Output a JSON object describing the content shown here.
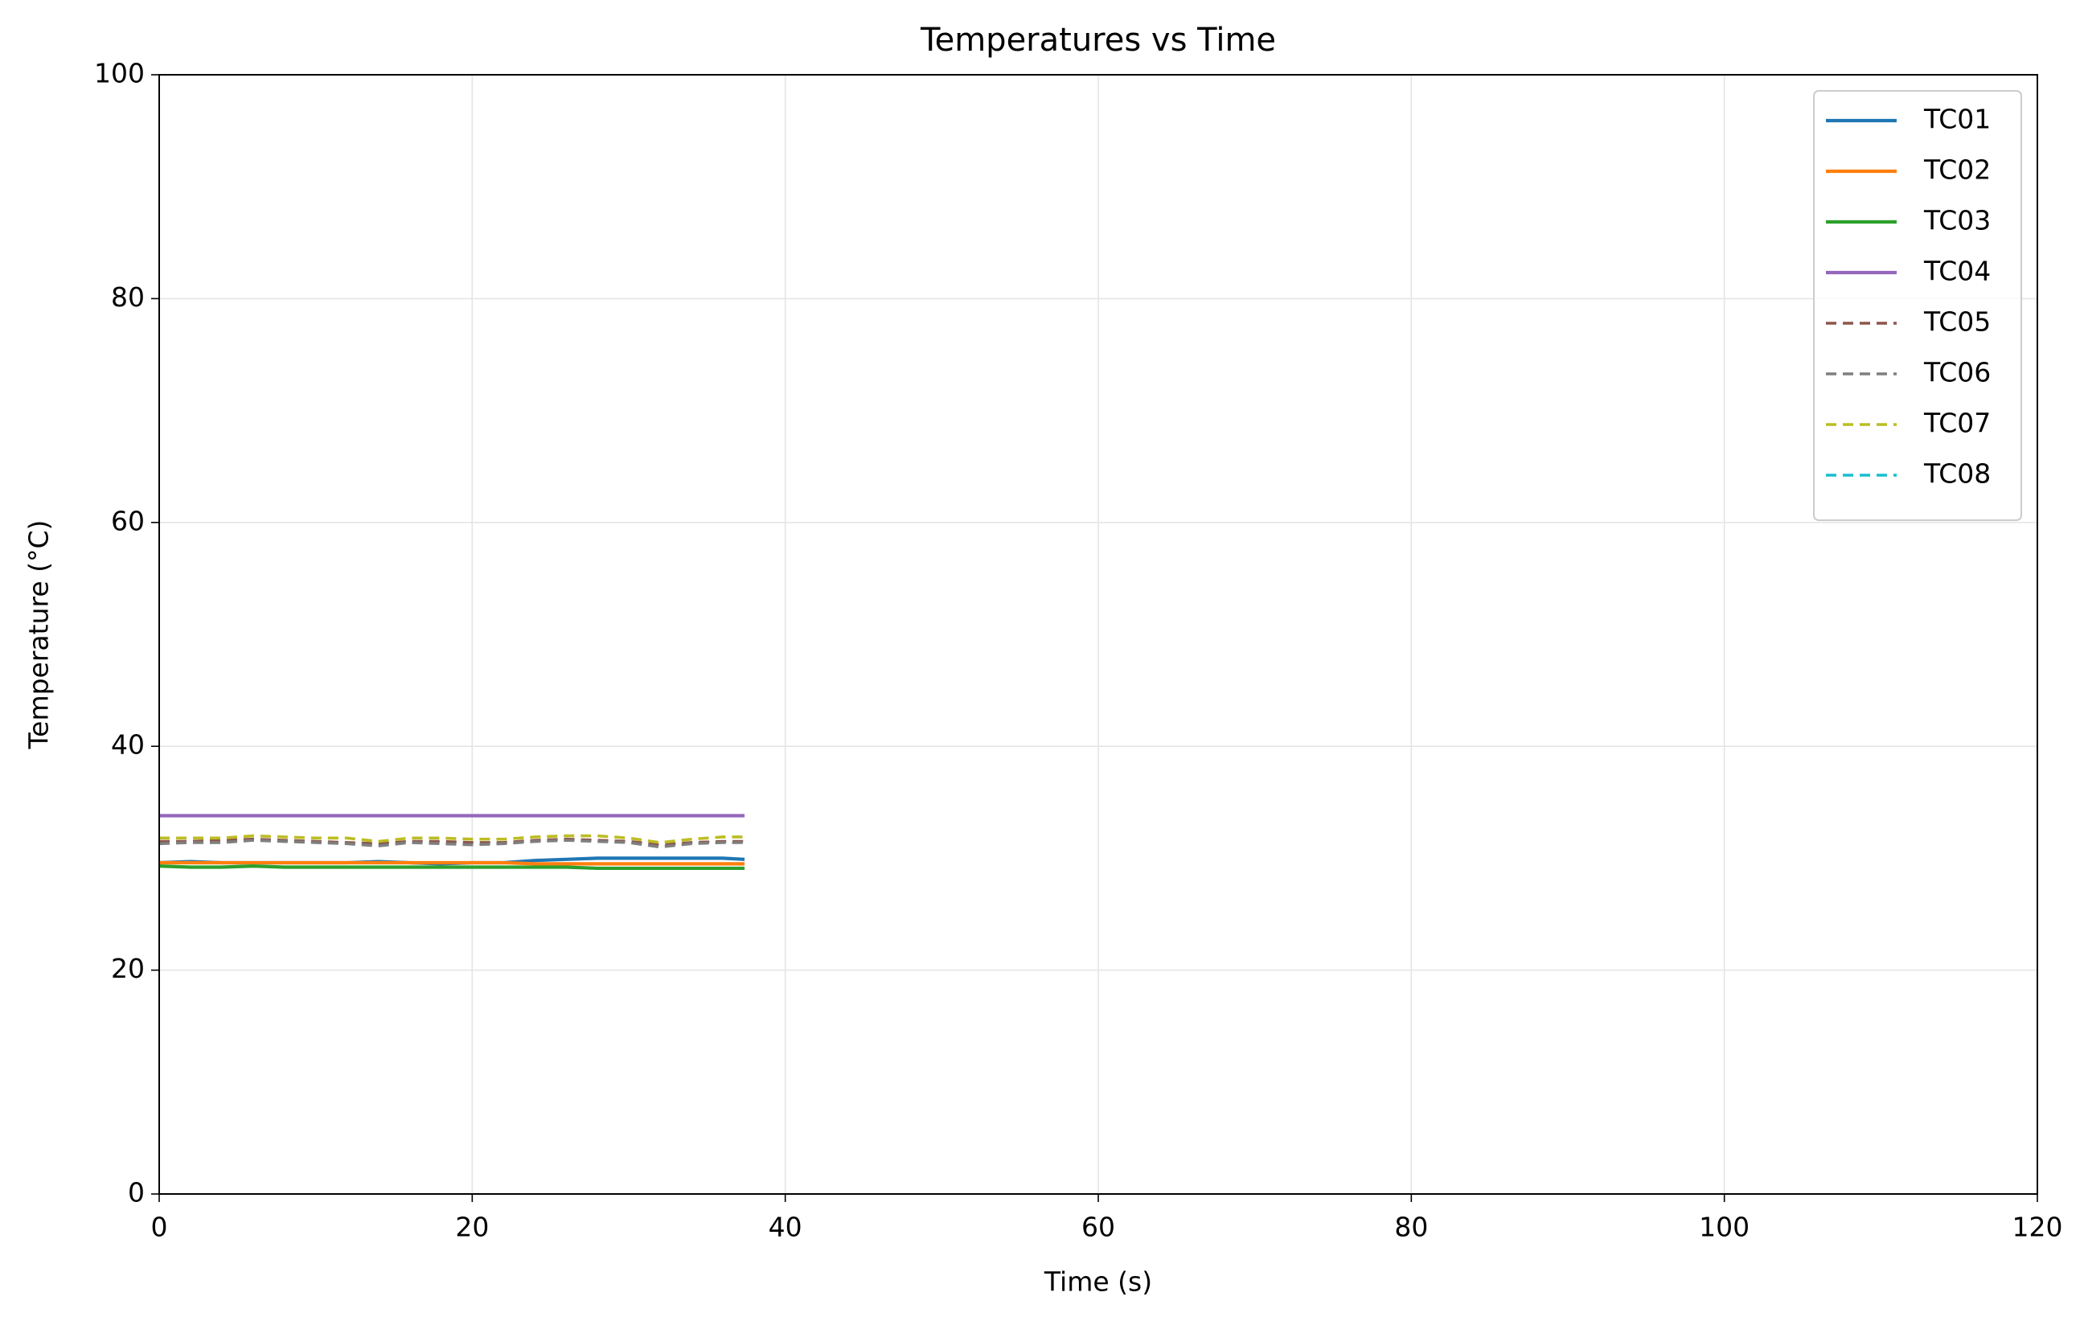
{
  "chart_data": {
    "type": "line",
    "title": "Temperatures vs Time",
    "x_label": "Time (s)",
    "y_label": "Temperature (°C)",
    "x": [
      0,
      2,
      4,
      6,
      8,
      10,
      12,
      14,
      16,
      18,
      20,
      22,
      24,
      26,
      28,
      30,
      32,
      34,
      36,
      37.4
    ],
    "series": [
      {
        "name": "TC01",
        "color": "#1f77b4",
        "dash": false,
        "values": [
          29.6,
          29.7,
          29.6,
          29.6,
          29.6,
          29.6,
          29.6,
          29.7,
          29.6,
          29.5,
          29.6,
          29.6,
          29.8,
          29.9,
          30.0,
          30.0,
          30.0,
          30.0,
          30.0,
          29.9
        ]
      },
      {
        "name": "TC02",
        "color": "#ff7f0e",
        "dash": false,
        "values": [
          29.6,
          29.6,
          29.6,
          29.6,
          29.6,
          29.6,
          29.6,
          29.6,
          29.6,
          29.6,
          29.6,
          29.6,
          29.5,
          29.5,
          29.5,
          29.5,
          29.5,
          29.5,
          29.5,
          29.5
        ]
      },
      {
        "name": "TC03",
        "color": "#2ca02c",
        "dash": false,
        "values": [
          29.3,
          29.2,
          29.2,
          29.3,
          29.2,
          29.2,
          29.2,
          29.2,
          29.2,
          29.2,
          29.2,
          29.2,
          29.2,
          29.2,
          29.1,
          29.1,
          29.1,
          29.1,
          29.1,
          29.1
        ]
      },
      {
        "name": "TC04",
        "color": "#9467bd",
        "dash": false,
        "values": [
          33.8,
          33.8,
          33.8,
          33.8,
          33.8,
          33.8,
          33.8,
          33.8,
          33.8,
          33.8,
          33.8,
          33.8,
          33.8,
          33.8,
          33.8,
          33.8,
          33.8,
          33.8,
          33.8,
          33.8
        ]
      },
      {
        "name": "TC05",
        "color": "#8c564b",
        "dash": true,
        "values": [
          31.5,
          31.5,
          31.6,
          31.7,
          31.6,
          31.5,
          31.4,
          31.3,
          31.5,
          31.5,
          31.4,
          31.4,
          31.6,
          31.7,
          31.6,
          31.5,
          31.2,
          31.4,
          31.5,
          31.5
        ]
      },
      {
        "name": "TC06",
        "color": "#7f7f7f",
        "dash": true,
        "values": [
          31.3,
          31.4,
          31.4,
          31.6,
          31.5,
          31.4,
          31.3,
          31.1,
          31.4,
          31.3,
          31.2,
          31.3,
          31.5,
          31.6,
          31.5,
          31.4,
          31.0,
          31.3,
          31.4,
          31.4
        ]
      },
      {
        "name": "TC07",
        "color": "#bcbd22",
        "dash": true,
        "values": [
          31.8,
          31.8,
          31.8,
          32.0,
          31.9,
          31.8,
          31.8,
          31.5,
          31.8,
          31.8,
          31.7,
          31.7,
          31.9,
          32.0,
          32.0,
          31.8,
          31.4,
          31.7,
          31.9,
          31.9
        ]
      },
      {
        "name": "TC08",
        "color": "#17becf",
        "dash": true,
        "values": [
          null,
          null,
          null,
          null,
          null,
          null,
          null,
          null,
          null,
          null,
          null,
          null,
          null,
          null,
          null,
          null,
          null,
          null,
          null,
          null
        ]
      }
    ],
    "xlim": [
      0,
      120
    ],
    "xticks": [
      0,
      20,
      40,
      60,
      80,
      100,
      120
    ],
    "ylim": [
      0,
      100
    ],
    "yticks": [
      0,
      20,
      40,
      60,
      80,
      100
    ],
    "grid": true,
    "legend": "upper right"
  }
}
